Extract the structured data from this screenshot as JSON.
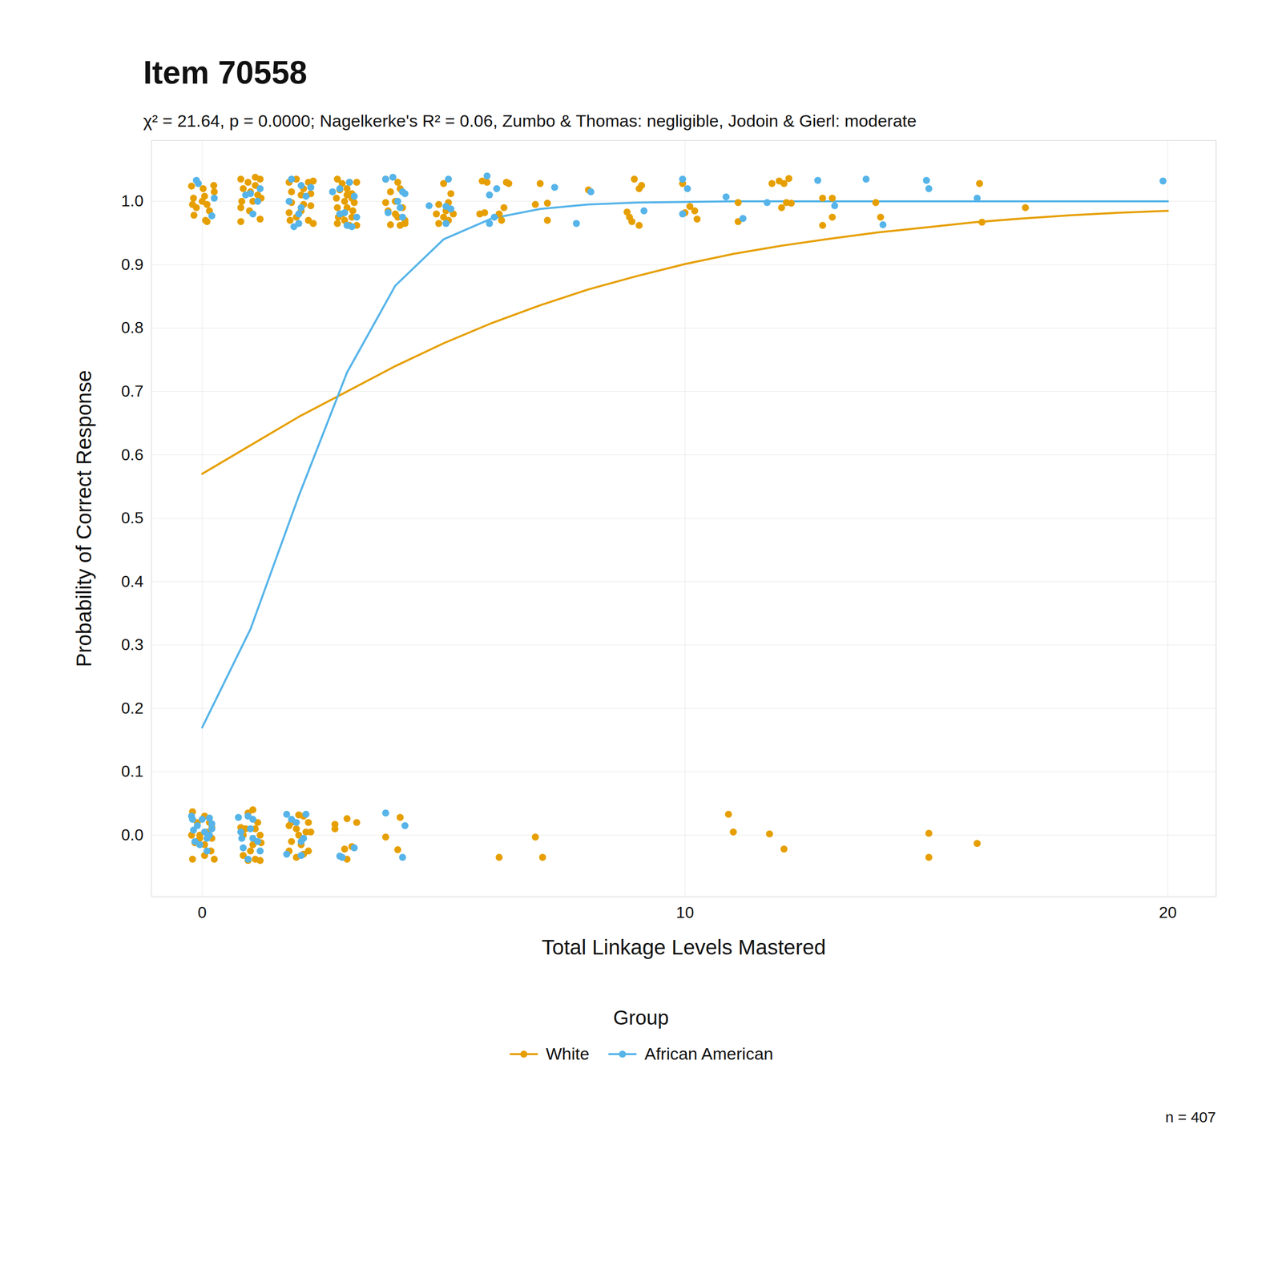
{
  "chart_data": {
    "type": "scatter",
    "title": "Item 70558",
    "subtitle": "χ² = 21.64, p = 0.0000; Nagelkerke's R² = 0.06, Zumbo & Thomas: negligible, Jodoin & Gierl: moderate",
    "x_label": "Total Linkage Levels Mastered",
    "y_label": "Probability of Correct Response",
    "legend_title": "Group",
    "caption": "n = 407",
    "xlim": [
      -1.05,
      21.0
    ],
    "ylim": [
      -0.097,
      1.096
    ],
    "xticks": [
      0,
      10,
      20
    ],
    "yticks": [
      {
        "value": 0,
        "label": "0.0"
      },
      0.1,
      0.2,
      0.3,
      0.4,
      0.5,
      0.6,
      0.7,
      0.8,
      0.9,
      {
        "value": 1,
        "label": "1.0"
      }
    ],
    "grid": true,
    "legend": "bottom",
    "series": [
      {
        "name": "White",
        "type": "line",
        "color": "#E69F00",
        "x": [
          0,
          1,
          2,
          3,
          4,
          5,
          6,
          7,
          8,
          9,
          10,
          11,
          12,
          13,
          14,
          15,
          16,
          17,
          18,
          19,
          20
        ],
        "values": [
          0.57,
          0.615,
          0.66,
          0.7,
          0.74,
          0.776,
          0.808,
          0.836,
          0.861,
          0.882,
          0.901,
          0.917,
          0.93,
          0.941,
          0.951,
          0.959,
          0.967,
          0.973,
          0.978,
          0.982,
          0.985
        ]
      },
      {
        "name": "African American",
        "type": "line",
        "color": "#56B4E9",
        "x": [
          0,
          1,
          2,
          3,
          4,
          5,
          6,
          7,
          8,
          9,
          10,
          11,
          12,
          13,
          14,
          15,
          16,
          17,
          18,
          19,
          20
        ],
        "values": [
          0.17,
          0.325,
          0.535,
          0.73,
          0.867,
          0.94,
          0.973,
          0.988,
          0.995,
          0.998,
          0.999,
          1.0,
          1.0,
          1.0,
          1.0,
          1.0,
          1.0,
          1.0,
          1.0,
          1.0,
          1.0
        ]
      },
      {
        "name": "White",
        "type": "scatter",
        "color": "#E69F00",
        "x": [
          -0.22,
          0.02,
          0.24,
          -0.18,
          0.05,
          0.25,
          -0.12,
          0.1,
          -0.17,
          0.07,
          0.15,
          0.0,
          -0.2,
          0.1,
          0.8,
          0.95,
          1.1,
          1.2,
          0.85,
          1.0,
          1.15,
          0.82,
          1.05,
          1.22,
          0.8,
          0.98,
          0.8,
          1.2,
          1.1,
          1.8,
          1.95,
          2.1,
          2.2,
          2.3,
          1.85,
          2.05,
          2.25,
          1.85,
          2.1,
          2.25,
          1.8,
          1.95,
          2.2,
          1.82,
          2.3,
          2.05,
          2.8,
          2.9,
          3.05,
          3.2,
          2.85,
          3.0,
          3.1,
          2.78,
          2.95,
          3.1,
          3.15,
          2.8,
          3.0,
          3.12,
          2.82,
          2.95,
          3.1,
          2.8,
          3.05,
          3.2,
          3.0,
          2.9,
          3.8,
          4.05,
          3.9,
          4.1,
          3.8,
          4.0,
          4.15,
          3.85,
          4.05,
          4.2,
          3.9,
          4.1,
          4.2,
          4.0,
          5.0,
          5.15,
          4.9,
          5.1,
          4.85,
          5.05,
          5.2,
          4.9,
          5.1,
          5.0,
          5.8,
          5.9,
          6.3,
          6.35,
          5.75,
          5.85,
          6.15,
          6.2,
          6.25,
          7.0,
          6.9,
          7.15,
          7.15,
          8.0,
          8.95,
          9.1,
          9.05,
          8.8,
          8.85,
          8.9,
          9.05,
          9.95,
          10.1,
          10.2,
          10.0,
          10.25,
          11.1,
          11.1,
          11.8,
          11.95,
          12.05,
          12.15,
          12.1,
          12.2,
          12.0,
          12.85,
          13.05,
          12.85,
          13.05,
          13.95,
          14.05,
          16.1,
          16.15,
          17.05,
          -0.2,
          -0.1,
          0.05,
          0.15,
          -0.22,
          -0.05,
          0.1,
          0.2,
          -0.15,
          0.05,
          0.18,
          -0.2,
          0.05,
          0.25,
          -0.05,
          0.2,
          0.8,
          0.95,
          1.05,
          1.15,
          0.9,
          1.1,
          1.2,
          0.85,
          1.05,
          1.22,
          0.85,
          1.0,
          1.1,
          1.2,
          0.95,
          1.85,
          2.0,
          2.1,
          1.8,
          2.2,
          1.95,
          2.15,
          2.25,
          1.85,
          2.05,
          1.8,
          2.2,
          1.95,
          2.1,
          2.0,
          2.75,
          2.75,
          3.0,
          3.2,
          2.95,
          3.1,
          3.0,
          3.8,
          4.1,
          4.05,
          6.15,
          6.9,
          7.05,
          10.9,
          11.0,
          11.75,
          12.05,
          15.05,
          15.05,
          16.05
        ],
        "values": [
          1.024,
          1.02,
          1.025,
          1.005,
          1.008,
          1.015,
          0.99,
          0.995,
          0.978,
          0.97,
          0.985,
          1.0,
          0.995,
          0.968,
          1.035,
          1.03,
          1.038,
          1.035,
          1.02,
          1.015,
          1.01,
          1.0,
          1.0,
          1.005,
          0.99,
          0.985,
          0.968,
          0.972,
          1.025,
          1.03,
          1.035,
          1.02,
          1.03,
          1.032,
          1.015,
          1.01,
          1.012,
          0.998,
          0.995,
          0.993,
          0.982,
          0.975,
          0.97,
          0.97,
          0.965,
          0.985,
          1.035,
          1.028,
          1.03,
          1.03,
          1.018,
          1.02,
          1.012,
          1.005,
          1.0,
          1.005,
          0.998,
          0.99,
          0.99,
          0.985,
          0.975,
          0.97,
          0.975,
          0.965,
          0.962,
          0.962,
          1.01,
          0.98,
          1.035,
          1.03,
          1.015,
          1.02,
          0.998,
          1.0,
          0.99,
          0.985,
          0.975,
          0.97,
          0.963,
          0.962,
          0.965,
          0.98,
          1.028,
          1.012,
          0.995,
          0.998,
          0.98,
          0.985,
          0.98,
          0.965,
          0.97,
          0.975,
          1.032,
          1.03,
          1.03,
          1.028,
          0.98,
          0.982,
          0.98,
          0.97,
          0.99,
          1.028,
          0.995,
          0.997,
          0.97,
          1.018,
          1.035,
          1.025,
          1.02,
          0.983,
          0.975,
          0.968,
          0.962,
          1.028,
          0.992,
          0.985,
          0.982,
          0.972,
          0.998,
          0.968,
          1.028,
          1.032,
          1.028,
          1.036,
          0.998,
          0.997,
          0.99,
          1.005,
          1.005,
          0.962,
          0.975,
          0.998,
          0.975,
          1.028,
          0.967,
          0.99,
          0.037,
          0.02,
          0.03,
          0.02,
          0.0,
          0.0,
          0.005,
          -0.005,
          -0.012,
          -0.015,
          -0.025,
          -0.038,
          -0.032,
          -0.038,
          -0.005,
          0.012,
          0.012,
          0.035,
          0.04,
          0.02,
          0.01,
          0.01,
          0.0,
          0.0,
          -0.015,
          -0.012,
          -0.032,
          -0.025,
          -0.038,
          -0.04,
          -0.04,
          0.02,
          0.032,
          0.03,
          0.015,
          0.02,
          0.01,
          0.005,
          0.005,
          -0.01,
          -0.015,
          -0.025,
          -0.025,
          -0.035,
          -0.03,
          0.0,
          0.017,
          0.01,
          0.026,
          0.02,
          -0.022,
          -0.018,
          -0.038,
          -0.003,
          0.028,
          -0.023,
          -0.035,
          -0.003,
          -0.035,
          0.033,
          0.005,
          0.002,
          -0.022,
          0.003,
          -0.035,
          -0.013
        ]
      },
      {
        "name": "African American",
        "type": "scatter",
        "color": "#56B4E9",
        "x": [
          -0.12,
          -0.08,
          0.25,
          0.2,
          0.9,
          1.2,
          1.15,
          1.05,
          1.0,
          1.85,
          1.8,
          2.05,
          2.0,
          2.25,
          1.9,
          2.15,
          2.05,
          2.0,
          2.7,
          2.85,
          3.05,
          3.15,
          2.85,
          2.95,
          3.0,
          3.1,
          3.2,
          3.8,
          3.95,
          4.15,
          4.05,
          3.85,
          4.1,
          4.15,
          4.2,
          4.7,
          5.05,
          5.1,
          5.15,
          5.05,
          5.9,
          5.95,
          6.05,
          5.95,
          6.1,
          7.3,
          7.75,
          8.05,
          9.15,
          9.95,
          10.05,
          9.95,
          10.85,
          11.2,
          11.7,
          12.75,
          13.1,
          13.75,
          14.1,
          15.0,
          15.05,
          16.05,
          19.9,
          -0.22,
          -0.2,
          -0.18,
          -0.1,
          0.0,
          0.15,
          0.05,
          0.2,
          -0.15,
          0.1,
          0.15,
          -0.05,
          0.1,
          0.2,
          0.75,
          0.95,
          1.05,
          0.8,
          1.0,
          0.82,
          1.05,
          0.85,
          1.2,
          0.95,
          1.15,
          1.75,
          1.85,
          1.95,
          2.15,
          2.1,
          2.05,
          1.75,
          2.05,
          2.85,
          2.9,
          3.15,
          3.8,
          4.2,
          4.15
        ],
        "values": [
          1.033,
          1.028,
          1.005,
          0.977,
          1.01,
          1.02,
          1.0,
          0.98,
          1.012,
          1.035,
          1.0,
          0.99,
          0.98,
          1.022,
          0.96,
          1.008,
          1.025,
          0.965,
          1.015,
          1.02,
          1.03,
          1.008,
          0.98,
          0.982,
          0.962,
          0.96,
          0.975,
          1.035,
          1.038,
          1.015,
          1.0,
          0.982,
          0.99,
          0.975,
          1.012,
          0.993,
          0.992,
          1.035,
          0.988,
          0.965,
          1.04,
          1.01,
          0.975,
          0.965,
          1.02,
          1.022,
          0.965,
          1.015,
          0.985,
          1.035,
          1.02,
          0.98,
          1.007,
          0.973,
          0.998,
          1.033,
          0.993,
          1.035,
          0.963,
          1.033,
          1.02,
          1.005,
          1.032,
          0.03,
          0.025,
          0.008,
          0.015,
          0.025,
          0.027,
          0.005,
          0.01,
          -0.01,
          -0.005,
          0.0,
          -0.015,
          -0.025,
          0.018,
          0.028,
          0.03,
          0.025,
          0.005,
          0.01,
          -0.005,
          -0.005,
          -0.02,
          -0.025,
          -0.038,
          -0.01,
          0.033,
          0.025,
          0.02,
          0.033,
          -0.005,
          -0.01,
          -0.03,
          -0.032,
          -0.033,
          -0.035,
          -0.02,
          0.035,
          0.015,
          -0.035
        ]
      }
    ]
  }
}
